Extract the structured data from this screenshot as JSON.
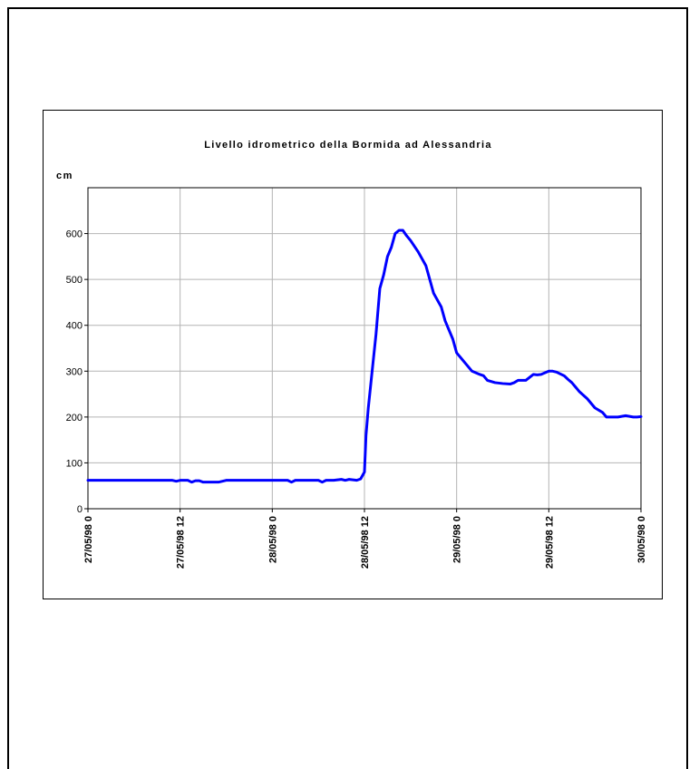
{
  "chart_data": {
    "type": "line",
    "title": "Livello idrometrico della Bormida ad Alessandria",
    "ylabel": "cm",
    "xlabel": "",
    "ylim": [
      0,
      700
    ],
    "xlim": [
      0,
      72
    ],
    "yticks": [
      0,
      100,
      200,
      300,
      400,
      500,
      600
    ],
    "xticks": [
      {
        "hour": 0,
        "label": "27/05/98 0"
      },
      {
        "hour": 12,
        "label": "27/05/98 12"
      },
      {
        "hour": 24,
        "label": "28/05/98 0"
      },
      {
        "hour": 36,
        "label": "28/05/98 12"
      },
      {
        "hour": 48,
        "label": "29/05/98 0"
      },
      {
        "hour": 60,
        "label": "29/05/98 12"
      },
      {
        "hour": 72,
        "label": "30/05/98 0"
      }
    ],
    "grid": true,
    "line_color": "#0000ff",
    "series": [
      {
        "x": [
          0,
          11,
          11.5,
          12,
          13,
          13.5,
          14,
          14.5,
          15,
          16,
          17,
          18,
          19,
          20,
          21,
          22,
          26,
          26.5,
          27,
          29,
          30,
          30.5,
          31,
          32,
          33,
          33.5,
          34,
          35,
          35.5,
          36,
          36.2,
          36.5,
          37,
          37.5,
          38,
          38.5,
          39,
          39.5,
          40,
          40.5,
          41,
          41.5,
          42,
          43,
          44,
          44.5,
          45,
          46,
          46.5,
          47,
          47.5,
          48,
          49,
          50,
          51,
          51.5,
          52,
          53,
          54,
          55,
          55.5,
          56,
          57,
          58,
          58.5,
          59,
          60,
          60.5,
          61,
          62,
          62.5,
          63,
          63.5,
          64,
          65,
          66,
          67,
          67.5,
          68,
          68.5,
          69,
          70,
          71,
          71.5,
          72
        ],
        "values": [
          62,
          62,
          60,
          62,
          62,
          58,
          61,
          61,
          58,
          58,
          58,
          62,
          62,
          62,
          62,
          62,
          62,
          58,
          62,
          62,
          62,
          58,
          62,
          62,
          64,
          62,
          64,
          62,
          65,
          80,
          160,
          220,
          300,
          380,
          480,
          510,
          550,
          570,
          600,
          607,
          607,
          595,
          585,
          560,
          530,
          500,
          470,
          440,
          410,
          390,
          370,
          340,
          320,
          300,
          293,
          290,
          280,
          275,
          273,
          272,
          275,
          280,
          280,
          293,
          292,
          293,
          300,
          300,
          298,
          290,
          282,
          275,
          265,
          255,
          240,
          220,
          210,
          200,
          200,
          200,
          200,
          203,
          200,
          200,
          201
        ]
      }
    ]
  }
}
